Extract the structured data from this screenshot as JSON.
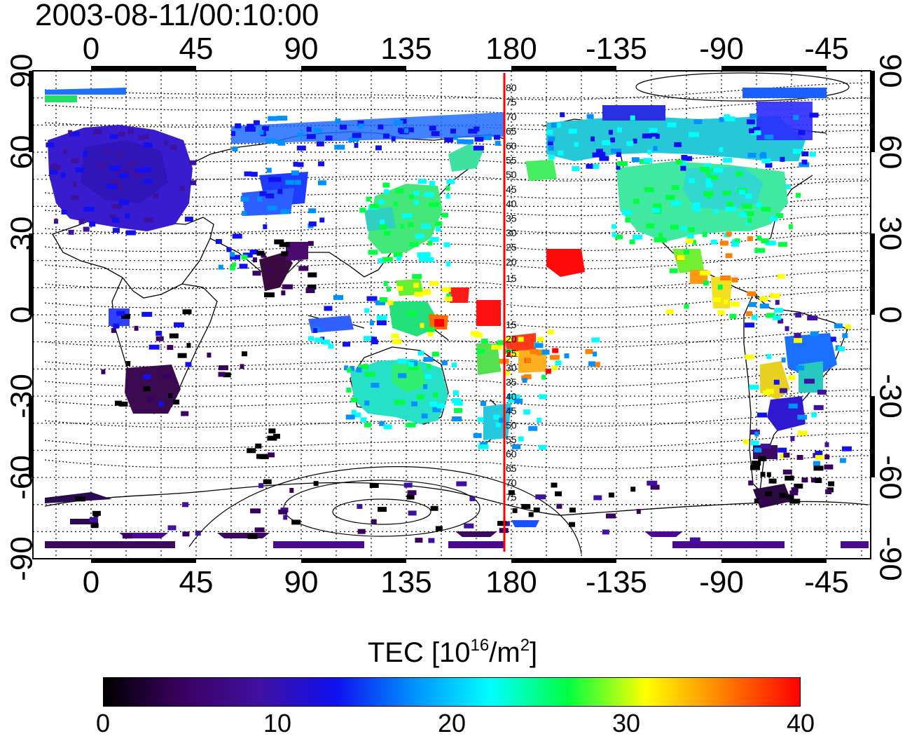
{
  "title": "2003-08-11/00:10:00",
  "map": {
    "top_lon_ticks": [
      "0",
      "45",
      "90",
      "135",
      "180",
      "-135",
      "-90",
      "-45"
    ],
    "bottom_lon_ticks": [
      "0",
      "45",
      "90",
      "135",
      "180",
      "-135",
      "-90",
      "-45"
    ],
    "left_lat_ticks": [
      "90",
      "60",
      "30",
      "0",
      "-30",
      "-60",
      "-90"
    ],
    "right_lat_ticks": [
      "90",
      "60",
      "30",
      "0",
      "-30",
      "-60",
      "-90"
    ],
    "meridian_line_color": "#ff0000",
    "contour_labels_north": [
      "80",
      "75",
      "70",
      "65",
      "60",
      "55",
      "50",
      "45",
      "40",
      "35",
      "30",
      "25",
      "20",
      "15"
    ],
    "contour_labels_south": [
      "15",
      "20",
      "25",
      "30",
      "35",
      "40",
      "45",
      "50",
      "55",
      "60",
      "65",
      "70",
      "75"
    ]
  },
  "colorbar": {
    "title_main": "TEC  [10",
    "title_sup1": "16",
    "title_mid": "/m",
    "title_sup2": "2",
    "title_end": "]",
    "ticks": [
      "0",
      "10",
      "20",
      "30",
      "40"
    ],
    "min": 0,
    "max": 40,
    "colormap": [
      "#000000",
      "#3a0060",
      "#4010a0",
      "#1010f0",
      "#0090ff",
      "#00ffff",
      "#00ff40",
      "#ffff00",
      "#ff8000",
      "#ff0000"
    ]
  }
}
